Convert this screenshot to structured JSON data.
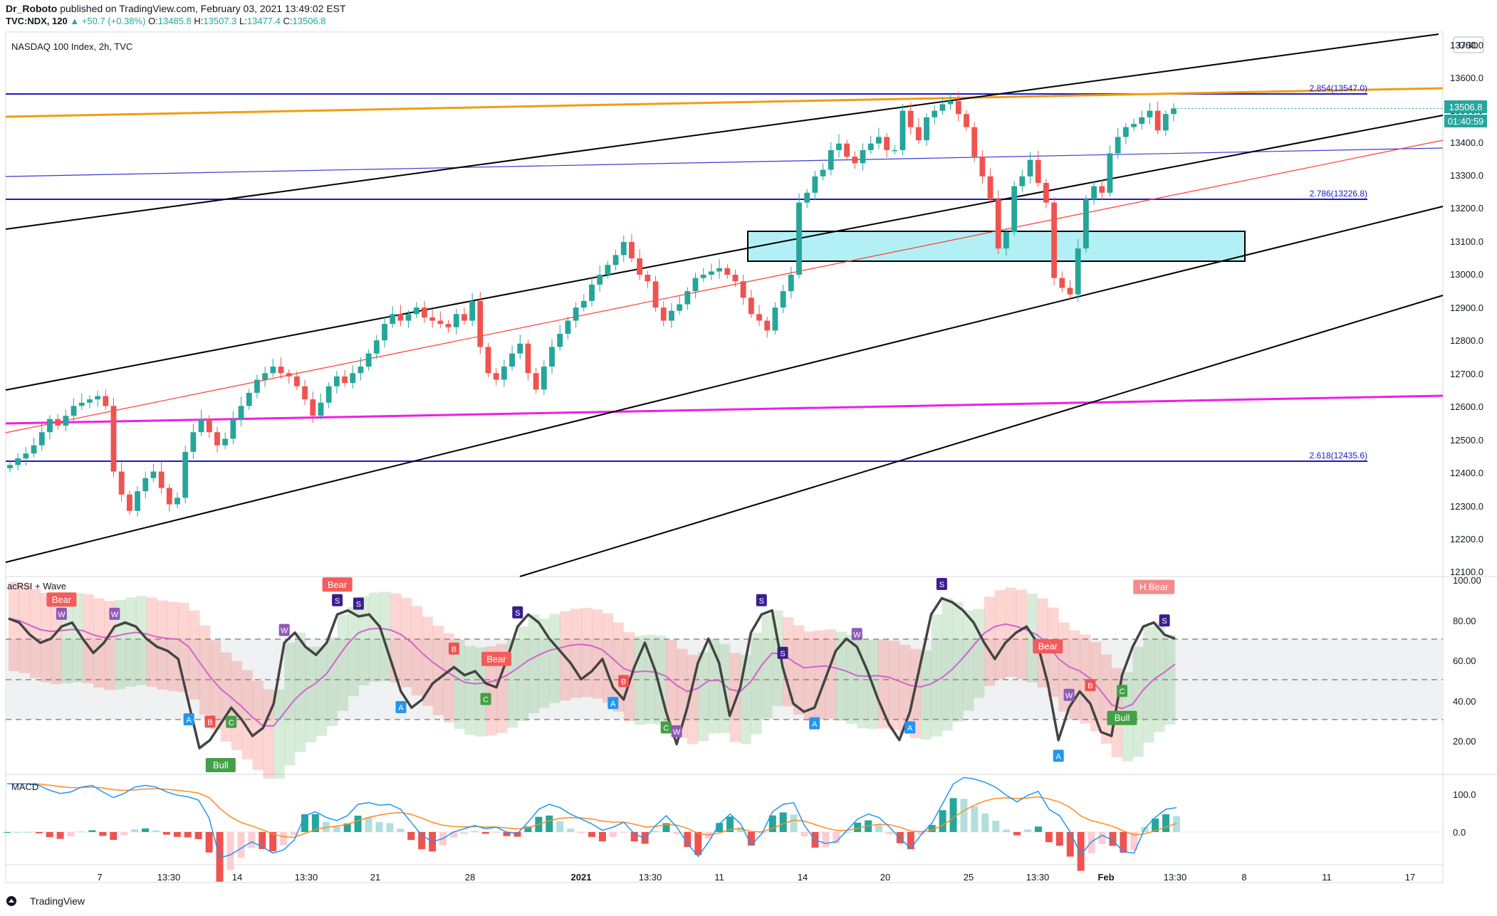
{
  "header": {
    "author": "Dr_Roboto",
    "published_text": "published on TradingView.com, February 03, 2021 13:49:02 EST",
    "symbol_line": {
      "symbol": "TVC:NDX, 120",
      "change": "▲ +50.7 (+0.38%)",
      "o_label": "O:",
      "o": "13485.8",
      "h_label": "H:",
      "h": "13507.3",
      "l_label": "L:",
      "l": "13477.4",
      "c_label": "C:",
      "c": "13506.8"
    }
  },
  "main_pane": {
    "title": "NASDAQ 100 Index, 2h, TVC",
    "currency_badge": "USD",
    "price_label": "13506.8",
    "countdown_label": "01:40:59",
    "y_ticks": [
      "13700.0",
      "13600.0",
      "13500.0",
      "13400.0",
      "13300.0",
      "13200.0",
      "13100.0",
      "13000.0",
      "12900.0",
      "12800.0",
      "12700.0",
      "12600.0",
      "12500.0",
      "12400.0",
      "12300.0",
      "12200.0",
      "12100.0"
    ],
    "fib_labels": [
      {
        "text": "2.854(13547.0)",
        "color": "#1a1ad0"
      },
      {
        "text": "2.786(13226.8)",
        "color": "#1a1ad0"
      },
      {
        "text": "2.618(12435.6)",
        "color": "#1a1ad0"
      }
    ]
  },
  "indicator_1": {
    "title": "acRSI + Wave",
    "y_ticks": [
      "100.00",
      "80.00",
      "60.00",
      "40.00",
      "20.00"
    ],
    "labels": [
      {
        "text": "Bear",
        "kind": "bear"
      },
      {
        "text": "Bear",
        "kind": "bear"
      },
      {
        "text": "Bear",
        "kind": "bear"
      },
      {
        "text": "Bear",
        "kind": "bear"
      },
      {
        "text": "H Bear",
        "kind": "hbear"
      },
      {
        "text": "Bull",
        "kind": "bull"
      },
      {
        "text": "Bull",
        "kind": "bull"
      },
      {
        "text": "A",
        "kind": "a"
      },
      {
        "text": "B",
        "kind": "b"
      },
      {
        "text": "C",
        "kind": "c"
      },
      {
        "text": "S",
        "kind": "s"
      },
      {
        "text": "W",
        "kind": "w"
      }
    ]
  },
  "indicator_2": {
    "title": "MACD",
    "y_ticks": [
      "100.0",
      "0.0"
    ]
  },
  "time_axis": [
    "7",
    "13:30",
    "14",
    "13:30",
    "21",
    "28",
    "2021",
    "13:30",
    "11",
    "14",
    "20",
    "25",
    "13:30",
    "Feb",
    "13:30",
    "8",
    "11",
    "17"
  ],
  "footer": {
    "brand": "TradingView"
  },
  "colors": {
    "bull_candle": "#26a69a",
    "bear_candle": "#ef5350",
    "fib_line": "#1a1ad0",
    "orange_line": "#f39c12",
    "magenta_line": "#ee1ee8",
    "red_channel": "#ff3b30",
    "zone_fill": "#b2f0f5",
    "rsi_line": "#444444",
    "rsi_ma": "#d561cf",
    "macd_line": "#2196f3",
    "signal_line": "#ff8a1f"
  },
  "chart_data": {
    "type": "candlestick",
    "title": "NASDAQ 100 Index, 2h, TVC",
    "ylim": [
      12080,
      13740
    ],
    "current_price": 13506.8,
    "series": [
      {
        "name": "NDX 2h close (approx.)",
        "values": [
          12420,
          12440,
          12455,
          12480,
          12520,
          12560,
          12540,
          12570,
          12600,
          12610,
          12620,
          12630,
          12600,
          12400,
          12330,
          12280,
          12340,
          12380,
          12400,
          12350,
          12300,
          12320,
          12460,
          12520,
          12560,
          12520,
          12480,
          12500,
          12560,
          12600,
          12640,
          12680,
          12700,
          12720,
          12700,
          12690,
          12660,
          12620,
          12570,
          12610,
          12660,
          12690,
          12670,
          12700,
          12720,
          12760,
          12800,
          12850,
          12880,
          12860,
          12880,
          12900,
          12870,
          12860,
          12850,
          12840,
          12880,
          12860,
          12920,
          12780,
          12700,
          12680,
          12720,
          12760,
          12790,
          12700,
          12650,
          12720,
          12780,
          12820,
          12860,
          12900,
          12920,
          12970,
          13000,
          13030,
          13060,
          13100,
          13050,
          13000,
          12980,
          12900,
          12860,
          12890,
          12910,
          12950,
          12990,
          13000,
          13010,
          13020,
          13000,
          12980,
          12930,
          12880,
          12860,
          12830,
          12900,
          12950,
          13000,
          13220,
          13250,
          13300,
          13320,
          13380,
          13400,
          13360,
          13340,
          13380,
          13400,
          13420,
          13380,
          13380,
          13500,
          13450,
          13410,
          13480,
          13500,
          13520,
          13530,
          13490,
          13450,
          13360,
          13300,
          13230,
          13080,
          13130,
          13270,
          13300,
          13350,
          13280,
          13220,
          12990,
          12960,
          12940,
          13080,
          13230,
          13270,
          13250,
          13370,
          13420,
          13450,
          13460,
          13480,
          13500,
          13440,
          13490,
          13506.8
        ]
      }
    ],
    "fib_levels": [
      {
        "ratio": 2.854,
        "price": 13547.0
      },
      {
        "ratio": 2.786,
        "price": 13226.8
      },
      {
        "ratio": 2.618,
        "price": 12435.6
      }
    ],
    "resistance_zone": {
      "low": 13040,
      "high": 13130
    },
    "rsi_ylim": [
      10,
      102
    ],
    "rsi_levels": [
      70,
      50,
      30
    ],
    "rsi": [
      82,
      80,
      74,
      70,
      72,
      78,
      80,
      72,
      65,
      70,
      78,
      80,
      78,
      72,
      68,
      66,
      62,
      40,
      18,
      22,
      30,
      38,
      32,
      24,
      28,
      40,
      70,
      75,
      68,
      64,
      70,
      84,
      86,
      83,
      84,
      78,
      62,
      46,
      38,
      42,
      50,
      54,
      58,
      54,
      56,
      50,
      48,
      62,
      78,
      84,
      80,
      72,
      66,
      60,
      52,
      56,
      62,
      48,
      42,
      58,
      70,
      56,
      36,
      20,
      38,
      60,
      72,
      60,
      34,
      48,
      75,
      84,
      86,
      58,
      40,
      36,
      38,
      52,
      66,
      72,
      68,
      56,
      42,
      30,
      22,
      36,
      60,
      84,
      92,
      90,
      86,
      80,
      70,
      62,
      70,
      75,
      78,
      70,
      50,
      22,
      38,
      46,
      40,
      26,
      24,
      54,
      68,
      78,
      80,
      74,
      72
    ]
  }
}
